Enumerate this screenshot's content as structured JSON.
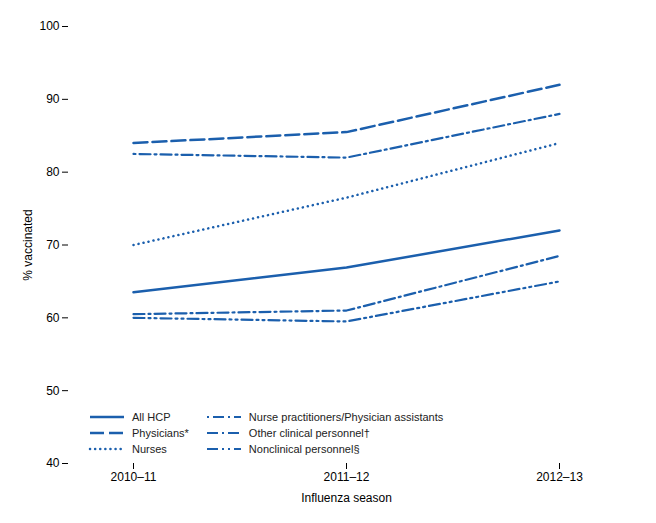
{
  "chart_data": {
    "type": "line",
    "categories": [
      "2010–11",
      "2011–12",
      "2012–13"
    ],
    "series": [
      {
        "name": "All HCP",
        "values": [
          63.5,
          66.9,
          72.0
        ],
        "line_style": "solid"
      },
      {
        "name": "Physicians*",
        "values": [
          84.0,
          85.5,
          92.0
        ],
        "line_style": "long_dash"
      },
      {
        "name": "Nurses",
        "values": [
          70.0,
          76.5,
          84.0
        ],
        "line_style": "dotted"
      },
      {
        "name": "Nurse practitioners/Physician assistants",
        "values": [
          82.5,
          82.0,
          88.0
        ],
        "line_style": "dot_dash"
      },
      {
        "name": "Other clinical personnel†",
        "values": [
          60.5,
          61.0,
          68.5
        ],
        "line_style": "dash_dot"
      },
      {
        "name": "Nonclinical personnel§",
        "values": [
          60.0,
          59.5,
          65.0
        ],
        "line_style": "dash_dot_dot"
      }
    ],
    "color": "#1b5fad",
    "ylim": [
      40,
      100
    ],
    "yticks": [
      40,
      50,
      60,
      70,
      80,
      90,
      100
    ],
    "xlabel": "Influenza season",
    "ylabel": "% vaccinated",
    "legend": "lower left"
  }
}
